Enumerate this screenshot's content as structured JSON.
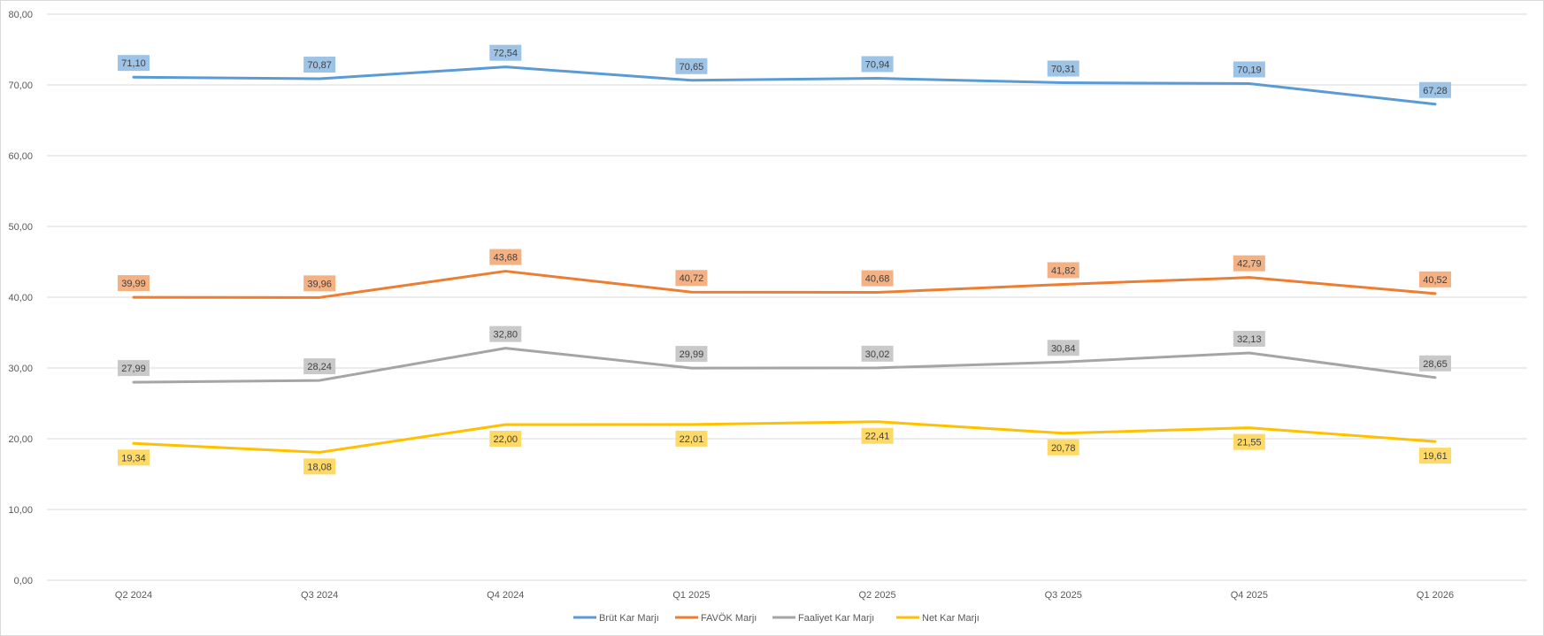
{
  "chart_data": {
    "type": "line",
    "title": "",
    "xlabel": "",
    "ylabel": "",
    "categories": [
      "Q2 2024",
      "Q3 2024",
      "Q4 2024",
      "Q1 2025",
      "Q2 2025",
      "Q3 2025",
      "Q4 2025",
      "Q1 2026"
    ],
    "ylim": [
      0,
      80
    ],
    "yticks": [
      "0,00",
      "10,00",
      "20,00",
      "30,00",
      "40,00",
      "50,00",
      "60,00",
      "70,00",
      "80,00"
    ],
    "grid": true,
    "legend_position": "bottom",
    "series": [
      {
        "name": "Brüt Kar Marjı",
        "color": "#5b9bd5",
        "label_bg": "#9dc3e6",
        "label_pos": "above",
        "values": [
          71.1,
          70.87,
          72.54,
          70.65,
          70.94,
          70.31,
          70.19,
          67.28
        ],
        "labels": [
          "71,10",
          "70,87",
          "72,54",
          "70,65",
          "70,94",
          "70,31",
          "70,19",
          "67,28"
        ]
      },
      {
        "name": "FAVÖK Marjı",
        "color": "#ed7d31",
        "label_bg": "#f4b183",
        "label_pos": "above",
        "values": [
          39.99,
          39.96,
          43.68,
          40.72,
          40.68,
          41.82,
          42.79,
          40.52
        ],
        "labels": [
          "39,99",
          "39,96",
          "43,68",
          "40,72",
          "40,68",
          "41,82",
          "42,79",
          "40,52"
        ]
      },
      {
        "name": "Faaliyet Kar Marjı",
        "color": "#a5a5a5",
        "label_bg": "#c9c9c9",
        "label_pos": "above",
        "values": [
          27.99,
          28.24,
          32.8,
          29.99,
          30.02,
          30.84,
          32.13,
          28.65
        ],
        "labels": [
          "27,99",
          "28,24",
          "32,80",
          "29,99",
          "30,02",
          "30,84",
          "32,13",
          "28,65"
        ]
      },
      {
        "name": "Net Kar Marjı",
        "color": "#ffc000",
        "label_bg": "#ffd966",
        "label_pos": "below",
        "values": [
          19.34,
          18.08,
          22.0,
          22.01,
          22.41,
          20.78,
          21.55,
          19.61
        ],
        "labels": [
          "19,34",
          "18,08",
          "22,00",
          "22,01",
          "22,41",
          "20,78",
          "21,55",
          "19,61"
        ]
      }
    ]
  }
}
